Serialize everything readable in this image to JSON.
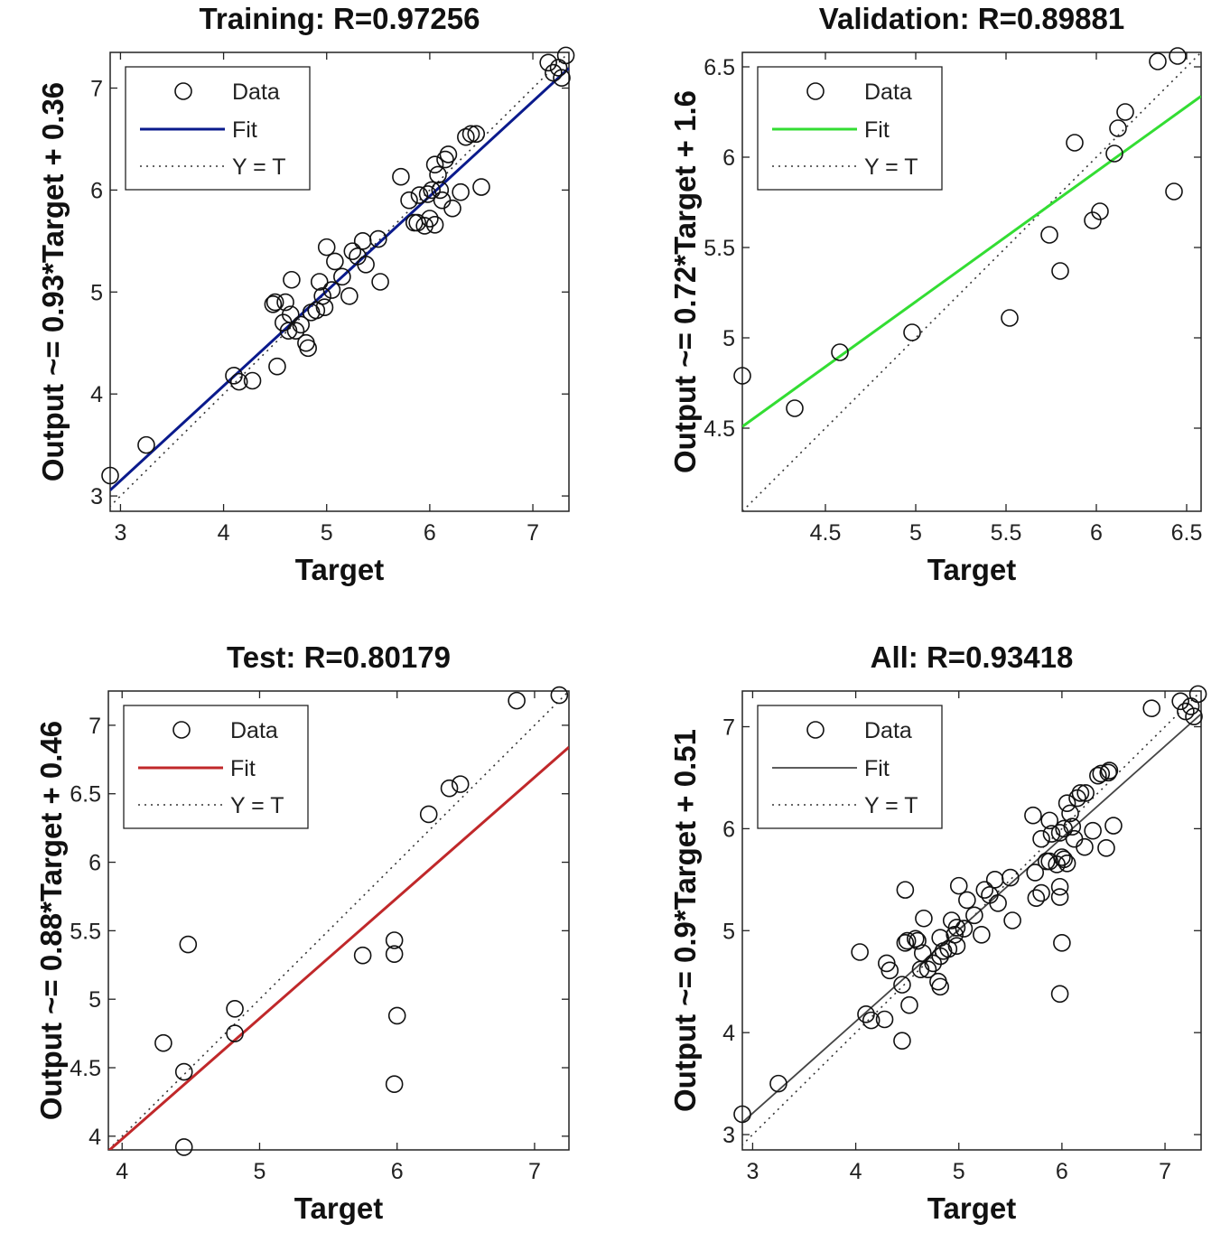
{
  "chart_data": [
    {
      "type": "scatter",
      "title": "Training: R=0.97256",
      "xlabel": "Target",
      "ylabel": "Output ~= 0.93*Target + 0.36",
      "xlim": [
        2.9,
        7.35
      ],
      "ylim": [
        2.85,
        7.35
      ],
      "xticks": [
        3,
        4,
        5,
        6,
        7
      ],
      "yticks": [
        3,
        4,
        5,
        6,
        7
      ],
      "fit_color": "#0a1a8c",
      "fit": {
        "slope": 0.93,
        "intercept": 0.36
      },
      "legend": {
        "position": "top-left",
        "entries": [
          "Data",
          "Fit",
          "Y = T"
        ]
      },
      "series": [
        {
          "name": "Data",
          "points": [
            [
              2.9,
              3.2
            ],
            [
              3.25,
              3.5
            ],
            [
              4.1,
              4.18
            ],
            [
              4.15,
              4.12
            ],
            [
              4.28,
              4.13
            ],
            [
              4.48,
              4.88
            ],
            [
              4.5,
              4.9
            ],
            [
              4.52,
              4.27
            ],
            [
              4.58,
              4.7
            ],
            [
              4.6,
              4.9
            ],
            [
              4.63,
              4.62
            ],
            [
              4.65,
              4.78
            ],
            [
              4.66,
              5.12
            ],
            [
              4.7,
              4.62
            ],
            [
              4.75,
              4.68
            ],
            [
              4.8,
              4.5
            ],
            [
              4.82,
              4.45
            ],
            [
              4.85,
              4.8
            ],
            [
              4.9,
              4.82
            ],
            [
              4.93,
              5.1
            ],
            [
              4.96,
              4.96
            ],
            [
              4.98,
              4.85
            ],
            [
              5.0,
              5.44
            ],
            [
              5.05,
              5.02
            ],
            [
              5.08,
              5.3
            ],
            [
              5.15,
              5.15
            ],
            [
              5.22,
              4.96
            ],
            [
              5.25,
              5.4
            ],
            [
              5.3,
              5.35
            ],
            [
              5.35,
              5.5
            ],
            [
              5.38,
              5.27
            ],
            [
              5.5,
              5.52
            ],
            [
              5.52,
              5.1
            ],
            [
              5.72,
              6.13
            ],
            [
              5.8,
              5.9
            ],
            [
              5.85,
              5.68
            ],
            [
              5.88,
              5.68
            ],
            [
              5.9,
              5.95
            ],
            [
              5.95,
              5.65
            ],
            [
              5.98,
              5.96
            ],
            [
              6.0,
              5.72
            ],
            [
              6.02,
              6.0
            ],
            [
              6.05,
              6.25
            ],
            [
              6.05,
              5.66
            ],
            [
              6.08,
              6.15
            ],
            [
              6.1,
              6.0
            ],
            [
              6.12,
              5.9
            ],
            [
              6.15,
              6.3
            ],
            [
              6.18,
              6.35
            ],
            [
              6.22,
              5.82
            ],
            [
              6.3,
              5.98
            ],
            [
              6.35,
              6.52
            ],
            [
              6.4,
              6.55
            ],
            [
              6.45,
              6.55
            ],
            [
              6.5,
              6.03
            ],
            [
              7.15,
              7.25
            ],
            [
              7.2,
              7.15
            ],
            [
              7.25,
              7.2
            ],
            [
              7.28,
              7.1
            ],
            [
              7.32,
              7.32
            ]
          ]
        }
      ]
    },
    {
      "type": "scatter",
      "title": "Validation: R=0.89881",
      "xlabel": "Target",
      "ylabel": "Output ~= 0.72*Target + 1.6",
      "xlim": [
        4.04,
        6.58
      ],
      "ylim": [
        4.04,
        6.58
      ],
      "xticks": [
        4.5,
        5,
        5.5,
        6,
        6.5
      ],
      "yticks": [
        4.5,
        5,
        5.5,
        6,
        6.5
      ],
      "fit_color": "#33dd33",
      "fit": {
        "slope": 0.72,
        "intercept": 1.6
      },
      "legend": {
        "position": "top-left",
        "entries": [
          "Data",
          "Fit",
          "Y = T"
        ]
      },
      "series": [
        {
          "name": "Data",
          "points": [
            [
              4.04,
              4.79
            ],
            [
              4.33,
              4.61
            ],
            [
              4.58,
              4.92
            ],
            [
              4.98,
              5.03
            ],
            [
              5.52,
              5.11
            ],
            [
              5.74,
              5.57
            ],
            [
              5.8,
              5.37
            ],
            [
              5.88,
              6.08
            ],
            [
              5.98,
              5.65
            ],
            [
              6.02,
              5.7
            ],
            [
              6.1,
              6.02
            ],
            [
              6.12,
              6.16
            ],
            [
              6.16,
              6.25
            ],
            [
              6.34,
              6.53
            ],
            [
              6.43,
              5.81
            ],
            [
              6.45,
              6.56
            ]
          ]
        }
      ]
    },
    {
      "type": "scatter",
      "title": "Test: R=0.80179",
      "xlabel": "Target",
      "ylabel": "Output ~= 0.88*Target + 0.46",
      "xlim": [
        3.9,
        7.25
      ],
      "ylim": [
        3.9,
        7.25
      ],
      "xticks": [
        4,
        5,
        6,
        7
      ],
      "yticks": [
        4,
        4.5,
        5,
        5.5,
        6,
        6.5,
        7
      ],
      "fit_color": "#c0282a",
      "fit": {
        "slope": 0.88,
        "intercept": 0.46
      },
      "legend": {
        "position": "top-left",
        "entries": [
          "Data",
          "Fit",
          "Y = T"
        ]
      },
      "series": [
        {
          "name": "Data",
          "points": [
            [
              4.3,
              4.68
            ],
            [
              4.45,
              4.47
            ],
            [
              4.45,
              3.92
            ],
            [
              4.48,
              5.4
            ],
            [
              4.82,
              4.93
            ],
            [
              4.82,
              4.75
            ],
            [
              5.75,
              5.32
            ],
            [
              5.98,
              5.43
            ],
            [
              5.98,
              5.33
            ],
            [
              6.0,
              4.88
            ],
            [
              5.98,
              4.38
            ],
            [
              6.23,
              6.35
            ],
            [
              6.38,
              6.54
            ],
            [
              6.46,
              6.57
            ],
            [
              6.87,
              7.18
            ],
            [
              7.18,
              7.22
            ]
          ]
        }
      ]
    },
    {
      "type": "scatter",
      "title": "All: R=0.93418",
      "xlabel": "Target",
      "ylabel": "Output ~= 0.9*Target + 0.51",
      "xlim": [
        2.9,
        7.35
      ],
      "ylim": [
        2.85,
        7.35
      ],
      "xticks": [
        3,
        4,
        5,
        6,
        7
      ],
      "yticks": [
        3,
        4,
        5,
        6,
        7
      ],
      "fit_color": "#444444",
      "fit": {
        "slope": 0.9,
        "intercept": 0.51
      },
      "legend": {
        "position": "top-left",
        "entries": [
          "Data",
          "Fit",
          "Y = T"
        ]
      },
      "series": [
        {
          "name": "Data",
          "points": [
            [
              2.9,
              3.2
            ],
            [
              3.25,
              3.5
            ],
            [
              4.04,
              4.79
            ],
            [
              4.1,
              4.18
            ],
            [
              4.15,
              4.12
            ],
            [
              4.28,
              4.13
            ],
            [
              4.3,
              4.68
            ],
            [
              4.33,
              4.61
            ],
            [
              4.45,
              4.47
            ],
            [
              4.45,
              3.92
            ],
            [
              4.48,
              5.4
            ],
            [
              4.48,
              4.88
            ],
            [
              4.5,
              4.9
            ],
            [
              4.52,
              4.27
            ],
            [
              4.58,
              4.92
            ],
            [
              4.6,
              4.9
            ],
            [
              4.63,
              4.62
            ],
            [
              4.65,
              4.78
            ],
            [
              4.66,
              5.12
            ],
            [
              4.7,
              4.62
            ],
            [
              4.75,
              4.68
            ],
            [
              4.8,
              4.5
            ],
            [
              4.82,
              4.45
            ],
            [
              4.82,
              4.93
            ],
            [
              4.82,
              4.75
            ],
            [
              4.85,
              4.8
            ],
            [
              4.9,
              4.82
            ],
            [
              4.93,
              5.1
            ],
            [
              4.96,
              4.96
            ],
            [
              4.98,
              5.03
            ],
            [
              4.98,
              4.85
            ],
            [
              5.0,
              5.44
            ],
            [
              5.05,
              5.02
            ],
            [
              5.08,
              5.3
            ],
            [
              5.15,
              5.15
            ],
            [
              5.22,
              4.96
            ],
            [
              5.25,
              5.4
            ],
            [
              5.3,
              5.35
            ],
            [
              5.35,
              5.5
            ],
            [
              5.38,
              5.27
            ],
            [
              5.5,
              5.52
            ],
            [
              5.52,
              5.1
            ],
            [
              5.72,
              6.13
            ],
            [
              5.74,
              5.57
            ],
            [
              5.75,
              5.32
            ],
            [
              5.8,
              5.37
            ],
            [
              5.8,
              5.9
            ],
            [
              5.85,
              5.68
            ],
            [
              5.88,
              6.08
            ],
            [
              5.88,
              5.68
            ],
            [
              5.9,
              5.95
            ],
            [
              5.95,
              5.65
            ],
            [
              5.98,
              5.43
            ],
            [
              5.98,
              5.33
            ],
            [
              5.98,
              4.38
            ],
            [
              5.98,
              5.96
            ],
            [
              6.0,
              4.88
            ],
            [
              6.0,
              5.72
            ],
            [
              6.02,
              5.7
            ],
            [
              6.02,
              6.0
            ],
            [
              6.05,
              6.25
            ],
            [
              6.05,
              5.66
            ],
            [
              6.08,
              6.15
            ],
            [
              6.1,
              6.02
            ],
            [
              6.12,
              5.9
            ],
            [
              6.15,
              6.3
            ],
            [
              6.18,
              6.35
            ],
            [
              6.22,
              5.82
            ],
            [
              6.23,
              6.35
            ],
            [
              6.3,
              5.98
            ],
            [
              6.35,
              6.52
            ],
            [
              6.38,
              6.54
            ],
            [
              6.43,
              5.81
            ],
            [
              6.45,
              6.55
            ],
            [
              6.46,
              6.57
            ],
            [
              6.5,
              6.03
            ],
            [
              6.87,
              7.18
            ],
            [
              7.15,
              7.25
            ],
            [
              7.2,
              7.15
            ],
            [
              7.25,
              7.2
            ],
            [
              7.28,
              7.1
            ],
            [
              7.32,
              7.32
            ]
          ]
        }
      ]
    }
  ]
}
